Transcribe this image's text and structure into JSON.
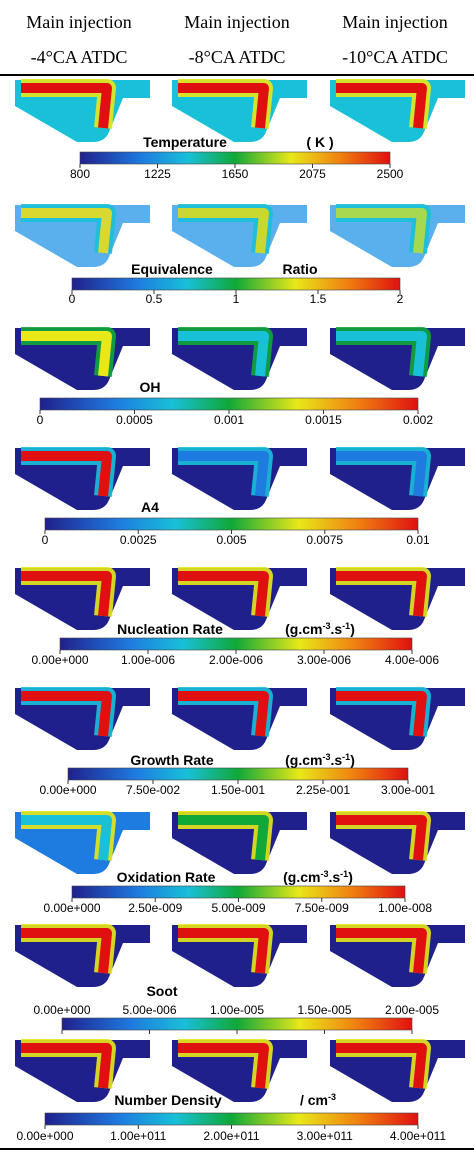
{
  "header": [
    "Main injection",
    "Main injection",
    "Main injection"
  ],
  "subheader": [
    "-4°CA ATDC",
    "-8°CA ATDC",
    "-10°CA ATDC"
  ],
  "panels": [
    {
      "title": "Temperature",
      "unit": [
        "( K )"
      ],
      "ticks": [
        "800",
        "1225",
        "1650",
        "2075",
        "2500"
      ]
    },
    {
      "title": "Equivalence",
      "unit": [
        "Ratio"
      ],
      "ticks": [
        "0",
        "0.5",
        "1",
        "1.5",
        "2"
      ]
    },
    {
      "title": "OH",
      "ticks": [
        "0",
        "0.0005",
        "0.001",
        "0.0015",
        "0.002"
      ]
    },
    {
      "title": "A4",
      "ticks": [
        "0",
        "0.0025",
        "0.005",
        "0.0075",
        "0.01"
      ]
    },
    {
      "title": "Nucleation Rate",
      "unit": [
        "(g.cm",
        "-3",
        ".s",
        "-1",
        ")"
      ],
      "ticks": [
        "0.00e+000",
        "1.00e-006",
        "2.00e-006",
        "3.00e-006",
        "4.00e-006"
      ]
    },
    {
      "title": "Growth Rate",
      "unit": [
        "(g.cm",
        "-3",
        ".s",
        "-1",
        ")"
      ],
      "ticks": [
        "0.00e+000",
        "7.50e-002",
        "1.50e-001",
        "2.25e-001",
        "3.00e-001"
      ]
    },
    {
      "title": "Oxidation Rate",
      "unit": [
        "(g.cm",
        "-3",
        ".s",
        "-1",
        ")"
      ],
      "ticks": [
        "0.00e+000",
        "2.50e-009",
        "5.00e-009",
        "7.50e-009",
        "1.00e-008"
      ]
    },
    {
      "title": "Soot",
      "ticks": [
        "0.00e+000",
        "5.00e-006",
        "1.00e-005",
        "1.50e-005",
        "2.00e-005"
      ]
    },
    {
      "title": "Number Density",
      "unit": [
        "/ cm",
        "-3"
      ],
      "ticks": [
        "0.00e+000",
        "1.00e+011",
        "2.00e+011",
        "3.00e+011",
        "4.00e+011"
      ]
    }
  ]
}
